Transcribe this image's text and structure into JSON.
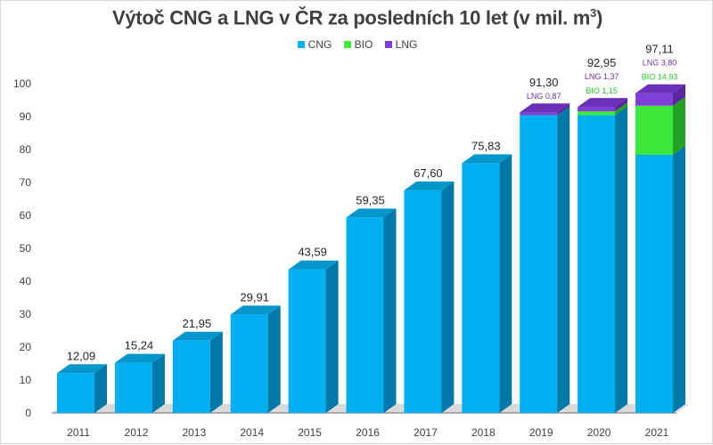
{
  "title": {
    "main": "Výtoč CNG a LNG v ČR za posledních 10 let (v mil. m",
    "sup": "3",
    "close": ")"
  },
  "legend": [
    {
      "name": "CNG",
      "color": "#00b0f0"
    },
    {
      "name": "BIO",
      "color": "#3de83d"
    },
    {
      "name": "LNG",
      "color": "#7b3fd6"
    }
  ],
  "colors": {
    "CNG": {
      "front": "#00b0f0",
      "top": "#0596cc",
      "side": "#0078a8"
    },
    "BIO": {
      "front": "#3de83d",
      "top": "#2fc02f",
      "side": "#24a024"
    },
    "LNG": {
      "front": "#8040d8",
      "top": "#6a30b8",
      "side": "#5a289c"
    },
    "floor": "#6b6b6b",
    "total_label": "#262626",
    "lng_label": "#7030a0",
    "bio_label": "#22c322"
  },
  "chart_data": {
    "type": "bar",
    "stacked": true,
    "three_d": true,
    "categories": [
      "2011",
      "2012",
      "2013",
      "2014",
      "2015",
      "2016",
      "2017",
      "2018",
      "2019",
      "2020",
      "2021"
    ],
    "series": [
      {
        "name": "CNG",
        "values": [
          12.09,
          15.24,
          21.95,
          29.91,
          43.59,
          59.35,
          67.6,
          75.83,
          90.43,
          90.43,
          78.38
        ]
      },
      {
        "name": "BIO",
        "values": [
          0,
          0,
          0,
          0,
          0,
          0,
          0,
          0,
          0,
          1.15,
          14.93
        ]
      },
      {
        "name": "LNG",
        "values": [
          0,
          0,
          0,
          0,
          0,
          0,
          0,
          0,
          0.87,
          1.37,
          3.8
        ]
      }
    ],
    "totals": [
      "12,09",
      "15,24",
      "21,95",
      "29,91",
      "43,59",
      "59,35",
      "67,60",
      "75,83",
      "91,30",
      "92,95",
      "97,11"
    ],
    "segment_labels": {
      "2019": {
        "LNG": "LNG 0,87"
      },
      "2020": {
        "LNG": "LNG 1,37",
        "BIO": "BIO 1,15"
      },
      "2021": {
        "LNG": "LNG  3,80",
        "BIO": "BIO 14,93"
      }
    },
    "y_ticks": [
      "0",
      "10",
      "20",
      "30",
      "40",
      "50",
      "60",
      "70",
      "80",
      "90",
      "100"
    ],
    "ylim": [
      0,
      100
    ],
    "grid": false,
    "legend_position": "top-center"
  }
}
